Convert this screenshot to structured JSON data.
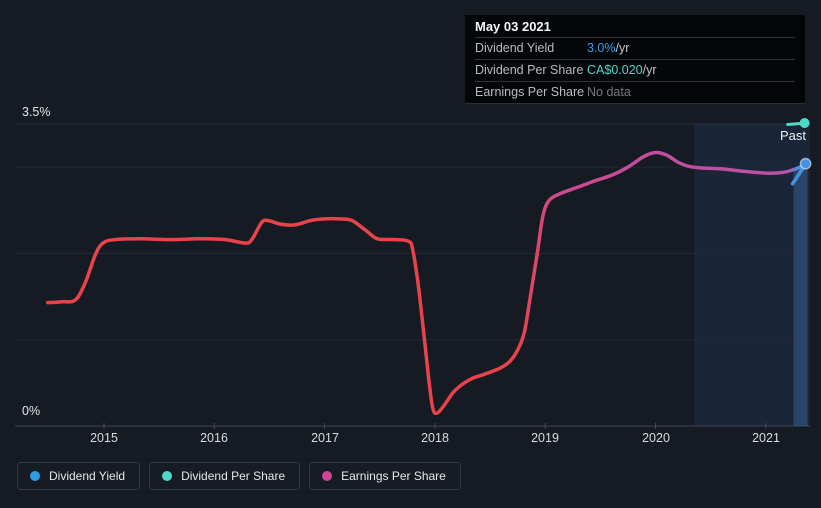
{
  "tooltip": {
    "date": "May 03 2021",
    "rows": [
      {
        "label": "Dividend Yield",
        "value": "3.0%",
        "unit": " /yr",
        "color_key": "blue"
      },
      {
        "label": "Dividend Per Share",
        "value": "CA$0.020",
        "unit": " /yr",
        "color_key": "teal"
      },
      {
        "label": "Earnings Per Share",
        "value": "No data",
        "unit": "",
        "color_key": "muted"
      }
    ]
  },
  "axes": {
    "y_top_label": "3.5%",
    "y_bottom_label": "0%",
    "x_labels": [
      "2015",
      "2016",
      "2017",
      "2018",
      "2019",
      "2020",
      "2021"
    ]
  },
  "past_label": "Past",
  "legend": {
    "items": [
      {
        "label": "Dividend Yield",
        "color": "#2d9fe0"
      },
      {
        "label": "Dividend Per Share",
        "color": "#4fd8c8"
      },
      {
        "label": "Earnings Per Share",
        "color": "#cf4496"
      }
    ]
  },
  "colors": {
    "blue": "#3b9fe8",
    "teal": "#4fd8c8",
    "pink": "#cf4496",
    "muted": "#75797e",
    "background": "#151a23",
    "grid_minor": "#232936",
    "grid_top": "#2b323f",
    "axis_line": "#3e4553",
    "past_region_fill": "rgba(58,108,182,0.14)",
    "hover_bar_fill": "rgba(80,142,214,0.30)"
  },
  "chart_data": {
    "type": "line",
    "title": "Dividend history",
    "x_axis": {
      "labels": [
        "2015",
        "2016",
        "2017",
        "2018",
        "2019",
        "2020",
        "2021"
      ],
      "range": [
        2014.45,
        2021.42
      ]
    },
    "y_axis": {
      "unit": "%",
      "range": [
        0,
        3.5
      ],
      "labeled_ticks": [
        "3.5%",
        "0%"
      ],
      "gridlines_pct": [
        3.5,
        3,
        2,
        1,
        0
      ]
    },
    "past_region": {
      "start": 2020.35,
      "end": 2021.42,
      "label": "Past"
    },
    "hover": {
      "x": 2021.37,
      "date": "May 03 2021"
    },
    "legend_position": "bottom",
    "series": [
      {
        "name": "Dividend Yield",
        "type": "line",
        "unit": "% /yr",
        "value_at_hover": "3.0% /yr",
        "colors": {
          "start": "#e8434a",
          "mid": "#c24f9e",
          "end": "#3f93e0"
        },
        "x": [
          2014.49,
          2014.62,
          2014.74,
          2014.83,
          2014.92,
          2014.99,
          2015.1,
          2015.33,
          2015.6,
          2015.87,
          2016.1,
          2016.28,
          2016.34,
          2016.43,
          2016.49,
          2016.6,
          2016.73,
          2016.87,
          2017.0,
          2017.14,
          2017.25,
          2017.37,
          2017.48,
          2017.64,
          2017.76,
          2017.8,
          2017.86,
          2017.94,
          2017.98,
          2018.02,
          2018.09,
          2018.18,
          2018.32,
          2018.45,
          2018.59,
          2018.68,
          2018.75,
          2018.81,
          2018.86,
          2018.93,
          2018.98,
          2019.04,
          2019.15,
          2019.3,
          2019.45,
          2019.61,
          2019.75,
          2019.89,
          2020.0,
          2020.1,
          2020.2,
          2020.3,
          2020.43,
          2020.6,
          2020.81,
          2021.02,
          2021.16,
          2021.25,
          2021.31,
          2021.37
        ],
        "y": [
          1.43,
          1.44,
          1.46,
          1.66,
          1.98,
          2.12,
          2.16,
          2.17,
          2.16,
          2.17,
          2.16,
          2.12,
          2.16,
          2.36,
          2.38,
          2.34,
          2.33,
          2.38,
          2.4,
          2.4,
          2.38,
          2.27,
          2.17,
          2.16,
          2.14,
          2.04,
          1.52,
          0.59,
          0.21,
          0.15,
          0.25,
          0.41,
          0.54,
          0.6,
          0.67,
          0.75,
          0.88,
          1.08,
          1.46,
          2.02,
          2.44,
          2.62,
          2.7,
          2.77,
          2.84,
          2.91,
          3.0,
          3.12,
          3.17,
          3.14,
          3.06,
          3.01,
          2.99,
          2.98,
          2.95,
          2.93,
          2.94,
          2.97,
          3.0,
          3.04
        ],
        "endpoint": {
          "x": 2021.37,
          "y": 3.04
        }
      },
      {
        "name": "Dividend Per Share",
        "type": "marker",
        "value_at_hover": "CA$0.020 /yr",
        "color": "#4fd8c8",
        "marker_note": "teal marker at top edge of plot at hover point"
      },
      {
        "name": "Earnings Per Share",
        "type": "none",
        "value_at_hover": "No data",
        "color": "#cf4496"
      }
    ]
  }
}
